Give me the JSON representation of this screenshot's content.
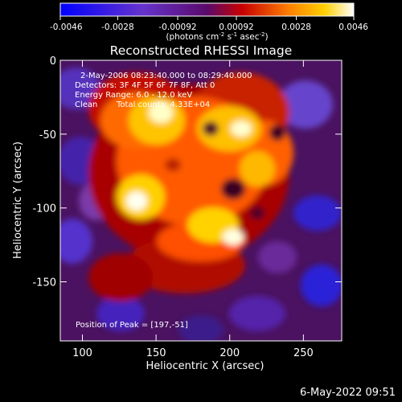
{
  "chart_data": {
    "type": "heatmap",
    "title": "Reconstructed RHESSI Image",
    "xlabel": "Heliocentric X (arcsec)",
    "ylabel": "Heliocentric Y (arcsec)",
    "xlim": [
      85,
      276
    ],
    "ylim": [
      -190,
      0
    ],
    "x_ticks": [
      100,
      150,
      200,
      250
    ],
    "y_ticks": [
      0,
      -50,
      -100,
      -150
    ],
    "colorbar": {
      "min": -0.0046,
      "max": 0.0046,
      "tick_labels": [
        "-0.0046",
        "-0.0028",
        "-0.00092",
        "0.00092",
        "0.0028",
        "0.0046"
      ],
      "tick_values": [
        -0.0046,
        -0.0028,
        -0.00092,
        0.00092,
        0.0028,
        0.0046
      ],
      "unit_label": "(photons cm",
      "unit_sup1": "-2",
      "unit_mid1": " s",
      "unit_sup2": "-1",
      "unit_mid2": " asec",
      "unit_sup3": "-2",
      "unit_end": ")"
    },
    "annotations": {
      "time_range": "2-May-2006 08:23:40.000 to 08:29:40.000",
      "detectors": "Detectors: 3F 4F 5F 6F 7F 8F, Att 0",
      "energy": "Energy Range: 6.0 - 12.0 keV",
      "clean": "Clean",
      "total_counts": "Total counts: 4.33E+04",
      "peak": "Position of Peak = [197,-51]"
    },
    "peak_position": [
      197,
      -51
    ],
    "total_counts": 43300
  },
  "footer": {
    "timestamp": "6-May-2022 09:51"
  }
}
